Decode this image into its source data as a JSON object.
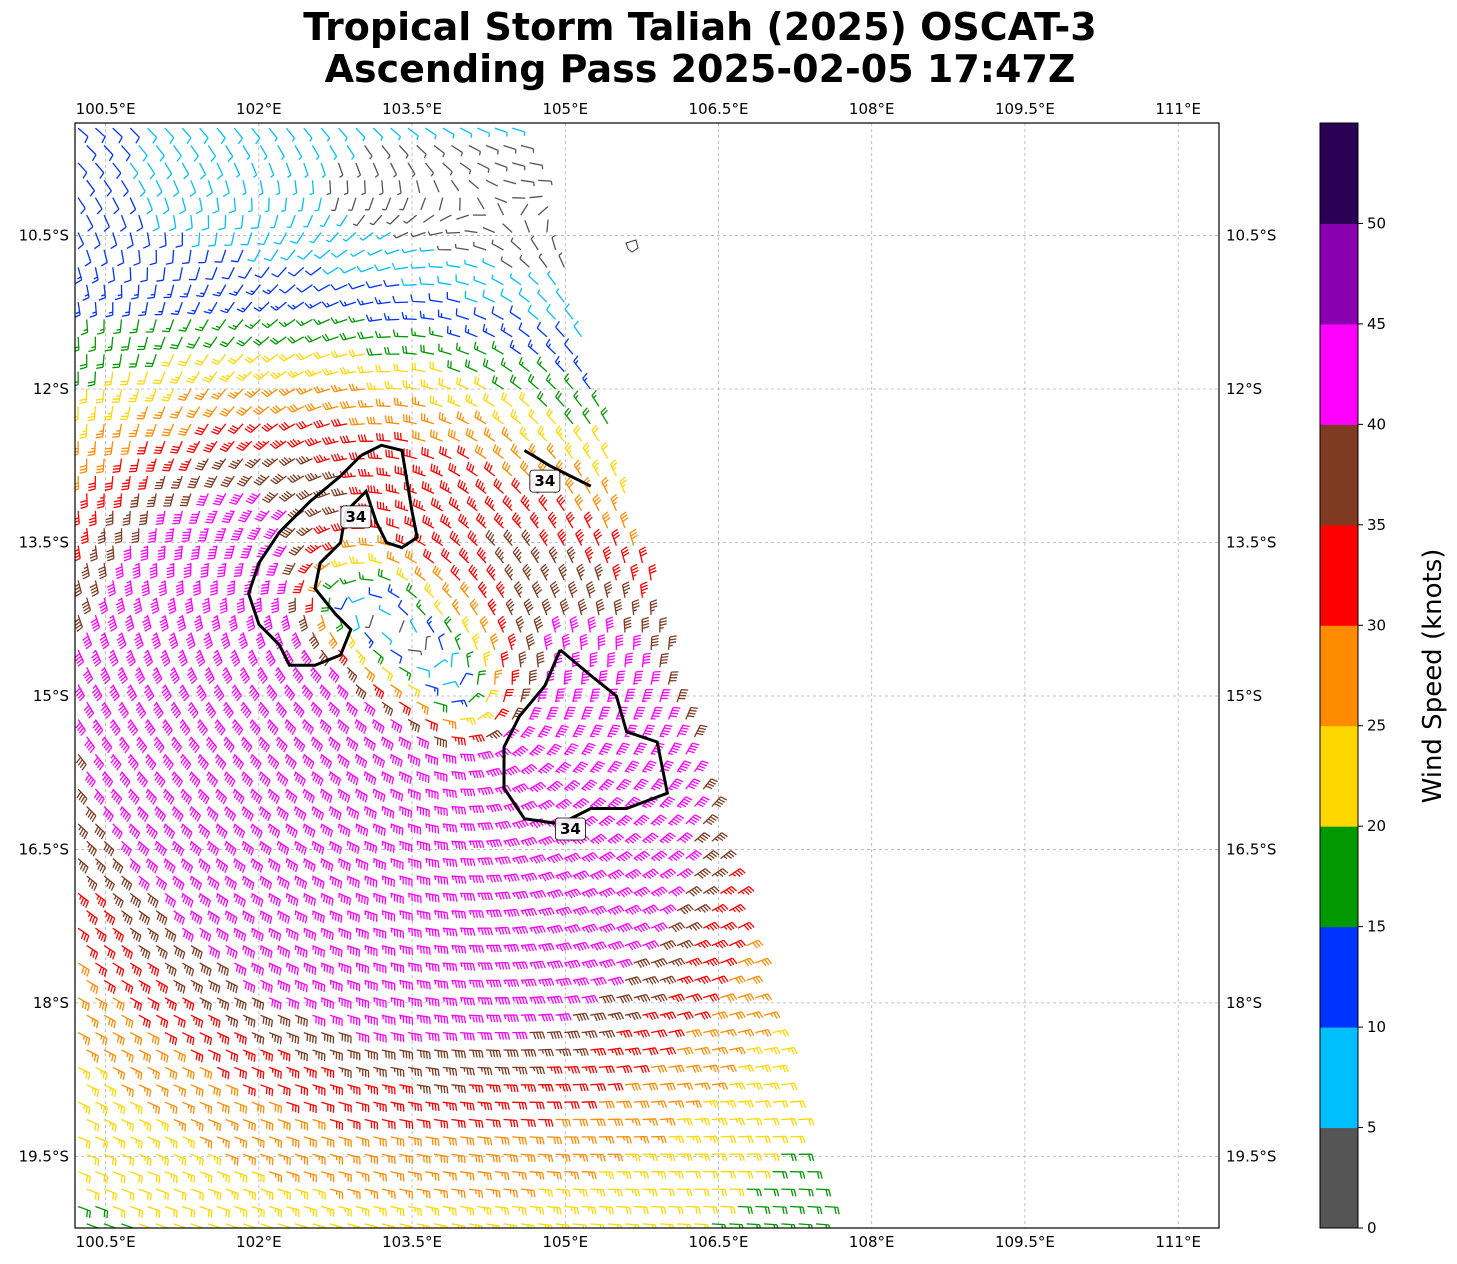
{
  "title": {
    "line1": "Tropical Storm Taliah (2025) OSCAT-3",
    "line2": "Ascending Pass 2025-02-05 17:47Z"
  },
  "map": {
    "lon_range": [
      100.2,
      111.4
    ],
    "lat_range": [
      -20.2,
      -9.4
    ],
    "grid": true,
    "lon_ticks": [
      {
        "value": 100.5,
        "label": "100.5°E"
      },
      {
        "value": 102.0,
        "label": "102°E"
      },
      {
        "value": 103.5,
        "label": "103.5°E"
      },
      {
        "value": 105.0,
        "label": "105°E"
      },
      {
        "value": 106.5,
        "label": "106.5°E"
      },
      {
        "value": 108.0,
        "label": "108°E"
      },
      {
        "value": 109.5,
        "label": "109.5°E"
      },
      {
        "value": 111.0,
        "label": "111°E"
      }
    ],
    "lat_ticks": [
      {
        "value": -10.5,
        "label": "10.5°S"
      },
      {
        "value": -12.0,
        "label": "12°S"
      },
      {
        "value": -13.5,
        "label": "13.5°S"
      },
      {
        "value": -15.0,
        "label": "15°S"
      },
      {
        "value": -16.5,
        "label": "16.5°S"
      },
      {
        "value": -18.0,
        "label": "18°S"
      },
      {
        "value": -19.5,
        "label": "19.5°S"
      }
    ],
    "swath": {
      "top_right_lon": 104.6,
      "top_lat": -9.4,
      "bottom_right_lon": 107.6,
      "bottom_lat": -20.2
    },
    "storm_centers": [
      {
        "lon": 102.6,
        "lat": -14.0
      },
      {
        "lon": 104.2,
        "lat": -15.4
      }
    ],
    "contours": [
      {
        "level": "34",
        "points": [
          [
            103.0,
            -12.65
          ],
          [
            103.2,
            -12.55
          ],
          [
            103.4,
            -12.6
          ],
          [
            103.45,
            -12.9
          ],
          [
            103.5,
            -13.2
          ],
          [
            103.55,
            -13.45
          ],
          [
            103.4,
            -13.55
          ],
          [
            103.25,
            -13.5
          ],
          [
            103.15,
            -13.3
          ],
          [
            103.05,
            -13.0
          ],
          [
            102.85,
            -13.2
          ],
          [
            102.8,
            -13.5
          ],
          [
            102.6,
            -13.7
          ],
          [
            102.55,
            -13.95
          ],
          [
            102.75,
            -14.2
          ],
          [
            102.9,
            -14.35
          ],
          [
            102.8,
            -14.6
          ],
          [
            102.55,
            -14.7
          ],
          [
            102.3,
            -14.7
          ],
          [
            102.2,
            -14.5
          ],
          [
            102.0,
            -14.3
          ],
          [
            101.9,
            -14.0
          ],
          [
            102.0,
            -13.7
          ],
          [
            102.2,
            -13.4
          ],
          [
            102.5,
            -13.1
          ],
          [
            102.8,
            -12.85
          ],
          [
            103.0,
            -12.65
          ]
        ],
        "label": {
          "lon": 102.95,
          "lat": -13.25
        }
      },
      {
        "level": "34",
        "points": [
          [
            104.95,
            -14.55
          ],
          [
            105.25,
            -14.8
          ],
          [
            105.5,
            -15.0
          ],
          [
            105.6,
            -15.35
          ],
          [
            105.9,
            -15.45
          ],
          [
            106.0,
            -15.95
          ],
          [
            105.6,
            -16.1
          ],
          [
            105.25,
            -16.1
          ],
          [
            104.95,
            -16.25
          ],
          [
            104.6,
            -16.2
          ],
          [
            104.4,
            -15.9
          ],
          [
            104.4,
            -15.5
          ],
          [
            104.55,
            -15.2
          ],
          [
            104.8,
            -14.9
          ],
          [
            104.95,
            -14.55
          ]
        ],
        "label": {
          "lon": 105.05,
          "lat": -16.3
        }
      },
      {
        "level": "34",
        "points": [
          [
            104.6,
            -12.6
          ],
          [
            104.85,
            -12.75
          ],
          [
            105.05,
            -12.85
          ],
          [
            105.25,
            -12.95
          ]
        ],
        "label": {
          "lon": 104.8,
          "lat": -12.9
        }
      }
    ]
  },
  "colorbar": {
    "title": "Wind Speed (knots)",
    "ticks": [
      "0",
      "5",
      "10",
      "15",
      "20",
      "25",
      "30",
      "35",
      "40",
      "45",
      "50"
    ],
    "bins": [
      {
        "from": 0,
        "to": 5,
        "color": "#555555"
      },
      {
        "from": 5,
        "to": 10,
        "color": "#00bfff"
      },
      {
        "from": 10,
        "to": 15,
        "color": "#0033ff"
      },
      {
        "from": 15,
        "to": 20,
        "color": "#009900"
      },
      {
        "from": 20,
        "to": 25,
        "color": "#ffd700"
      },
      {
        "from": 25,
        "to": 30,
        "color": "#ff8c00"
      },
      {
        "from": 30,
        "to": 35,
        "color": "#ff0000"
      },
      {
        "from": 35,
        "to": 40,
        "color": "#7f3a22"
      },
      {
        "from": 40,
        "to": 45,
        "color": "#ff00ff"
      },
      {
        "from": 45,
        "to": 50,
        "color": "#8800b0"
      },
      {
        "from": 50,
        "to": 55,
        "color": "#2a0055"
      }
    ]
  }
}
